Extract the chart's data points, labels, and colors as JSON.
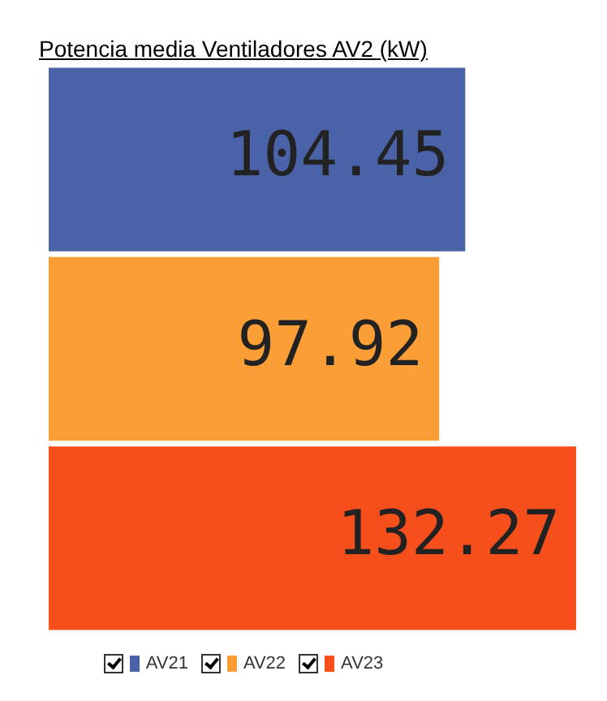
{
  "chart_data": {
    "type": "bar",
    "title": "Potencia media Ventiladores AV2 (kW)",
    "orientation": "horizontal",
    "categories": [
      null
    ],
    "series": [
      {
        "name": "AV21",
        "color": "#4a62a8",
        "values": [
          104.45
        ]
      },
      {
        "name": "AV22",
        "color": "#fb9e35",
        "values": [
          97.92
        ]
      },
      {
        "name": "AV23",
        "color": "#f74f1c",
        "values": [
          132.27
        ]
      }
    ],
    "data_labels": true,
    "legend": "bottom"
  }
}
